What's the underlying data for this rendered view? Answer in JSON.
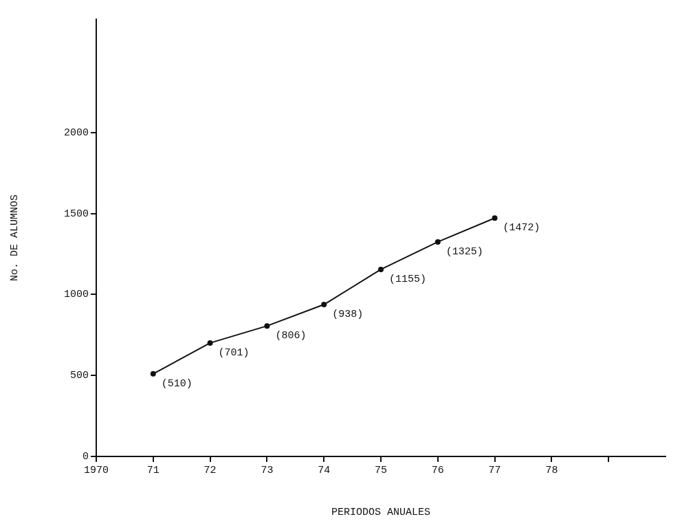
{
  "chart_data": {
    "type": "line",
    "xlabel": "PERIODOS ANUALES",
    "ylabel": "No. DE ALUMNOS",
    "x": [
      1971,
      1972,
      1973,
      1974,
      1975,
      1976,
      1977
    ],
    "values": [
      510,
      701,
      806,
      938,
      1155,
      1325,
      1472
    ],
    "value_labels": [
      "(510)",
      "(701)",
      "(806)",
      "(938)",
      "(1155)",
      "(1325)",
      "(1472)"
    ],
    "color": "#111111",
    "marker": "circle",
    "line_style": "solid",
    "grid": false,
    "legend": false,
    "xlim": [
      1970,
      1980
    ],
    "xticks": [
      {
        "value": 1970,
        "label": "1970"
      },
      {
        "value": 1971,
        "label": "71"
      },
      {
        "value": 1972,
        "label": "72"
      },
      {
        "value": 1973,
        "label": "73"
      },
      {
        "value": 1974,
        "label": "74"
      },
      {
        "value": 1975,
        "label": "75"
      },
      {
        "value": 1976,
        "label": "76"
      },
      {
        "value": 1977,
        "label": "77"
      },
      {
        "value": 1978,
        "label": "78"
      },
      {
        "value": 1979,
        "label": null
      }
    ],
    "ylim": [
      0,
      2700
    ],
    "yticks": [
      0,
      500,
      1000,
      1500,
      2000
    ]
  }
}
